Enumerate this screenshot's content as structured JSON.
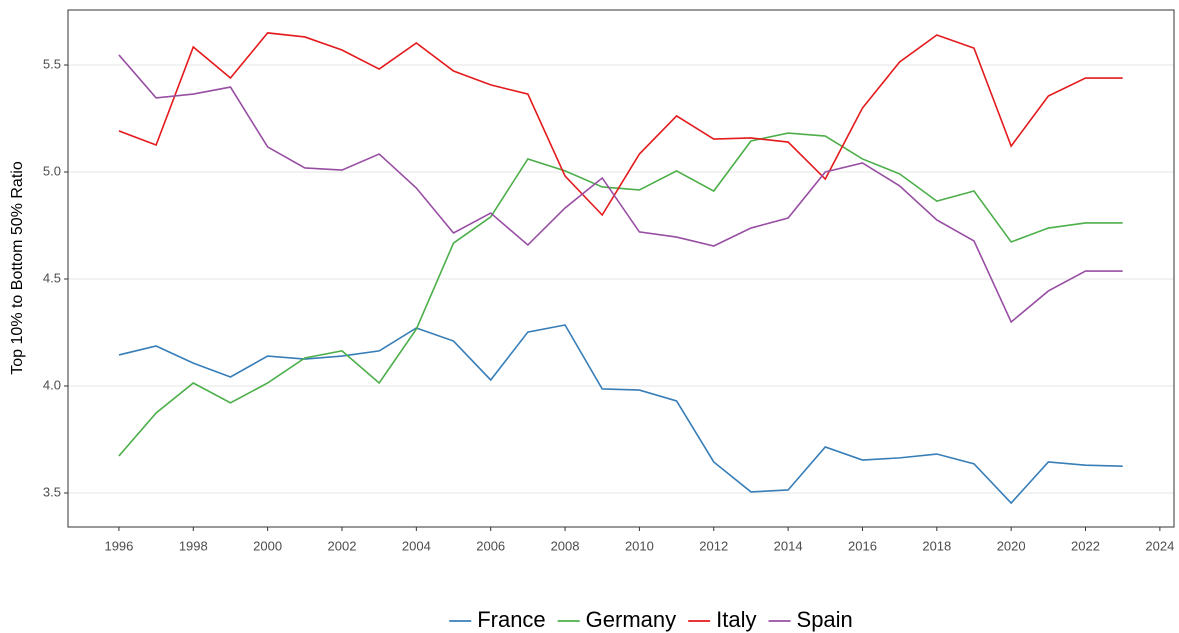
{
  "chart_data": {
    "type": "line",
    "y_label": "Top 10% to Bottom 50% Ratio",
    "x": [
      1996,
      1997,
      1998,
      1999,
      2000,
      2001,
      2002,
      2003,
      2004,
      2005,
      2006,
      2007,
      2008,
      2009,
      2010,
      2011,
      2012,
      2013,
      2014,
      2015,
      2016,
      2017,
      2018,
      2019,
      2020,
      2021,
      2022,
      2023
    ],
    "series": [
      {
        "name": "France",
        "color": "#377eb8",
        "values": [
          4.145,
          4.187,
          4.107,
          4.042,
          4.14,
          4.126,
          4.14,
          4.164,
          4.271,
          4.21,
          4.028,
          4.252,
          4.285,
          3.986,
          3.981,
          3.93,
          3.645,
          3.505,
          3.514,
          3.715,
          3.654,
          3.664,
          3.682,
          3.636,
          3.453,
          3.645,
          3.63,
          3.625
        ]
      },
      {
        "name": "Germany",
        "color": "#4daf4a",
        "values": [
          3.673,
          3.874,
          4.014,
          3.921,
          4.014,
          4.131,
          4.164,
          4.014,
          4.266,
          4.668,
          4.79,
          5.061,
          5.005,
          4.93,
          4.916,
          5.005,
          4.911,
          5.145,
          5.182,
          5.168,
          5.061,
          4.991,
          4.864,
          4.911,
          4.673,
          4.738,
          4.762,
          4.762
        ]
      },
      {
        "name": "Italy",
        "color": "#e41a1c",
        "values": [
          5.192,
          5.126,
          5.584,
          5.439,
          5.65,
          5.631,
          5.57,
          5.481,
          5.603,
          5.472,
          5.407,
          5.364,
          4.981,
          4.799,
          5.084,
          5.262,
          5.154,
          5.159,
          5.14,
          4.967,
          5.299,
          5.514,
          5.64,
          5.579,
          5.121,
          5.355,
          5.439,
          5.439
        ]
      },
      {
        "name": "Spain",
        "color": "#984ea3",
        "values": [
          5.547,
          5.346,
          5.364,
          5.397,
          5.117,
          5.019,
          5.009,
          5.084,
          4.925,
          4.715,
          4.808,
          4.659,
          4.832,
          4.972,
          4.72,
          4.696,
          4.654,
          4.738,
          4.785,
          5.0,
          5.042,
          4.935,
          4.776,
          4.678,
          4.299,
          4.444,
          4.537,
          4.537
        ]
      }
    ],
    "xlim": [
      1994.63,
      2024.38
    ],
    "xticks": [
      1996,
      1998,
      2000,
      2002,
      2004,
      2006,
      2008,
      2010,
      2012,
      2014,
      2016,
      2018,
      2020,
      2022,
      2024
    ],
    "ylim": [
      3.341,
      5.757
    ],
    "yticks": [
      3.5,
      {
        "value": 4,
        "label": "4.0"
      },
      4.5,
      {
        "value": 5,
        "label": "5.0"
      },
      5.5
    ],
    "grid": true,
    "legend": "bottom"
  }
}
